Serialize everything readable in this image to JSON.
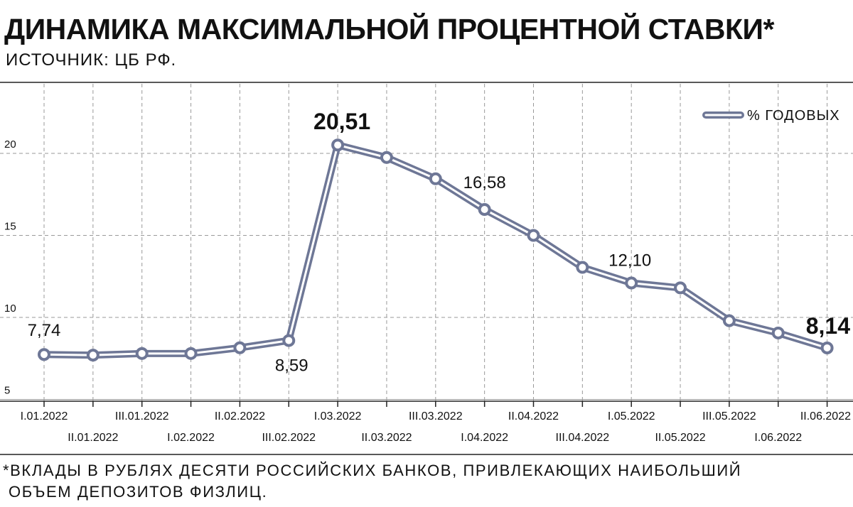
{
  "header": {
    "title": "ДИНАМИКА МАКСИМАЛЬНОЙ ПРОЦЕНТНОЙ СТАВКИ*",
    "source": "ИСТОЧНИК: ЦБ РФ."
  },
  "footnote": {
    "line1": "*ВКЛАДЫ В РУБЛЯХ ДЕСЯТИ РОССИЙСКИХ БАНКОВ, ПРИВЛЕКАЮЩИХ НАИБОЛЬШИЙ",
    "line2": "ОБЪЕМ ДЕПОЗИТОВ ФИЗЛИЦ."
  },
  "colors": {
    "series_outline": "#6e7796",
    "series_inner": "#ffffff",
    "grid": "#999999",
    "axis": "#222222"
  },
  "chart_data": {
    "type": "line",
    "title": "ДИНАМИКА МАКСИМАЛЬНОЙ ПРОЦЕНТНОЙ СТАВКИ*",
    "subtitle": "ИСТОЧНИК: ЦБ РФ.",
    "xlabel": "",
    "ylabel": "",
    "ylim": [
      5,
      23
    ],
    "yticks": [
      5,
      10,
      15,
      20
    ],
    "ytick_labels": [
      "5",
      "10",
      "15",
      "20"
    ],
    "grid": true,
    "legend": {
      "position": "top-right",
      "entries": [
        "% ГОДОВЫХ"
      ]
    },
    "categories": [
      "I.01.2022",
      "II.01.2022",
      "III.01.2022",
      "I.02.2022",
      "II.02.2022",
      "III.02.2022",
      "I.03.2022",
      "II.03.2022",
      "III.03.2022",
      "I.04.2022",
      "II.04.2022",
      "III.04.2022",
      "I.05.2022",
      "II.05.2022",
      "III.05.2022",
      "I.06.2022",
      "II.06.2022"
    ],
    "series": [
      {
        "name": "% ГОДОВЫХ",
        "values": [
          7.74,
          7.7,
          7.8,
          7.8,
          8.15,
          8.59,
          20.51,
          19.75,
          18.45,
          16.58,
          15.0,
          13.05,
          12.1,
          11.8,
          9.8,
          9.05,
          8.14
        ]
      }
    ],
    "data_labels": [
      {
        "index": 0,
        "text": "7,74",
        "emphasis": false
      },
      {
        "index": 5,
        "text": "8,59",
        "emphasis": false
      },
      {
        "index": 6,
        "text": "20,51",
        "emphasis": true
      },
      {
        "index": 9,
        "text": "16,58",
        "emphasis": false
      },
      {
        "index": 12,
        "text": "12,10",
        "emphasis": false
      },
      {
        "index": 16,
        "text": "8,14",
        "emphasis": true
      }
    ]
  }
}
